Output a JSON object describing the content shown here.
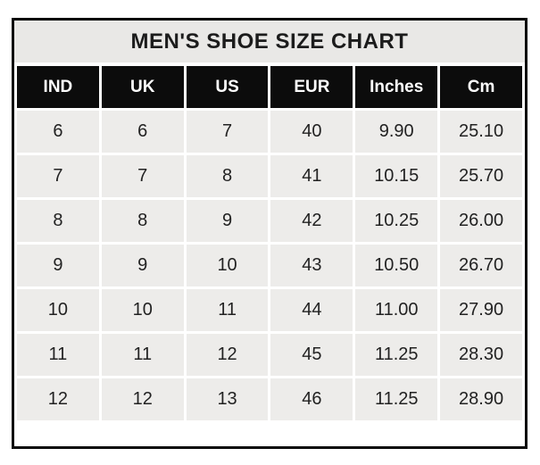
{
  "title": "MEN'S SHOE SIZE CHART",
  "colors": {
    "border": "#0a0a0a",
    "title_bg": "#e9e8e6",
    "header_bg": "#0c0c0c",
    "header_text": "#ffffff",
    "cell_bg": "#edecea",
    "gridline": "#ffffff",
    "text": "#222222"
  },
  "chart_data": {
    "type": "table",
    "title": "MEN'S SHOE SIZE CHART",
    "columns": [
      "IND",
      "UK",
      "US",
      "EUR",
      "Inches",
      "Cm"
    ],
    "rows": [
      [
        "6",
        "6",
        "7",
        "40",
        "9.90",
        "25.10"
      ],
      [
        "7",
        "7",
        "8",
        "41",
        "10.15",
        "25.70"
      ],
      [
        "8",
        "8",
        "9",
        "42",
        "10.25",
        "26.00"
      ],
      [
        "9",
        "9",
        "10",
        "43",
        "10.50",
        "26.70"
      ],
      [
        "10",
        "10",
        "11",
        "44",
        "11.00",
        "27.90"
      ],
      [
        "11",
        "11",
        "12",
        "45",
        "11.25",
        "28.30"
      ],
      [
        "12",
        "12",
        "13",
        "46",
        "11.25",
        "28.90"
      ]
    ]
  }
}
